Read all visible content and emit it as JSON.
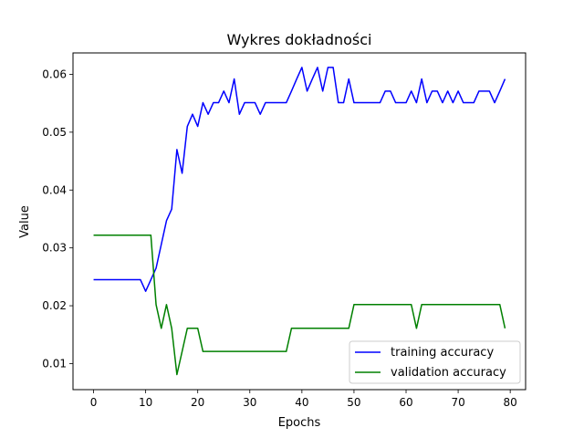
{
  "chart_data": {
    "type": "line",
    "title": "Wykres dokładności",
    "xlabel": "Epochs",
    "ylabel": "Value",
    "xlim": [
      -3.95,
      82.95
    ],
    "ylim": [
      0.0055,
      0.0637
    ],
    "xticks": [
      0,
      10,
      20,
      30,
      40,
      50,
      60,
      70,
      80
    ],
    "xtick_labels": [
      "0",
      "10",
      "20",
      "30",
      "40",
      "50",
      "60",
      "70",
      "80"
    ],
    "yticks": [
      0.01,
      0.02,
      0.03,
      0.04,
      0.05,
      0.06
    ],
    "ytick_labels": [
      "0.01",
      "0.02",
      "0.03",
      "0.04",
      "0.05",
      "0.06"
    ],
    "grid": false,
    "legend_position": "lower-right",
    "x": [
      0,
      1,
      2,
      3,
      4,
      5,
      6,
      7,
      8,
      9,
      10,
      11,
      12,
      13,
      14,
      15,
      16,
      17,
      18,
      19,
      20,
      21,
      22,
      23,
      24,
      25,
      26,
      27,
      28,
      29,
      30,
      31,
      32,
      33,
      34,
      35,
      36,
      37,
      38,
      39,
      40,
      41,
      42,
      43,
      44,
      45,
      46,
      47,
      48,
      49,
      50,
      51,
      52,
      53,
      54,
      55,
      56,
      57,
      58,
      59,
      60,
      61,
      62,
      63,
      64,
      65,
      66,
      67,
      68,
      69,
      70,
      71,
      72,
      73,
      74,
      75,
      76,
      77,
      78,
      79
    ],
    "series": [
      {
        "name": "training accuracy",
        "color": "#0000ff",
        "values": [
          0.0245,
          0.0245,
          0.0245,
          0.0245,
          0.0245,
          0.0245,
          0.0245,
          0.0245,
          0.0245,
          0.0245,
          0.0225,
          0.0245,
          0.0265,
          0.0306,
          0.0347,
          0.0367,
          0.047,
          0.0429,
          0.051,
          0.0531,
          0.051,
          0.0551,
          0.0531,
          0.0551,
          0.0551,
          0.0571,
          0.0551,
          0.0592,
          0.0531,
          0.0551,
          0.0551,
          0.0551,
          0.0531,
          0.0551,
          0.0551,
          0.0551,
          0.0551,
          0.0551,
          0.0571,
          0.0592,
          0.0612,
          0.0571,
          0.0592,
          0.0612,
          0.0571,
          0.0612,
          0.0612,
          0.0551,
          0.0551,
          0.0592,
          0.0551,
          0.0551,
          0.0551,
          0.0551,
          0.0551,
          0.0551,
          0.0571,
          0.0571,
          0.0551,
          0.0551,
          0.0551,
          0.0571,
          0.0551,
          0.0592,
          0.0551,
          0.0571,
          0.0571,
          0.0551,
          0.0571,
          0.0551,
          0.0571,
          0.0551,
          0.0551,
          0.0551,
          0.0571,
          0.0571,
          0.0571,
          0.0551,
          0.0571,
          0.0592
        ]
      },
      {
        "name": "validation accuracy",
        "color": "#008000",
        "values": [
          0.0322,
          0.0322,
          0.0322,
          0.0322,
          0.0322,
          0.0322,
          0.0322,
          0.0322,
          0.0322,
          0.0322,
          0.0322,
          0.0322,
          0.0202,
          0.0161,
          0.0202,
          0.0161,
          0.0081,
          0.0121,
          0.0161,
          0.0161,
          0.0161,
          0.0121,
          0.0121,
          0.0121,
          0.0121,
          0.0121,
          0.0121,
          0.0121,
          0.0121,
          0.0121,
          0.0121,
          0.0121,
          0.0121,
          0.0121,
          0.0121,
          0.0121,
          0.0121,
          0.0121,
          0.0161,
          0.0161,
          0.0161,
          0.0161,
          0.0161,
          0.0161,
          0.0161,
          0.0161,
          0.0161,
          0.0161,
          0.0161,
          0.0161,
          0.0202,
          0.0202,
          0.0202,
          0.0202,
          0.0202,
          0.0202,
          0.0202,
          0.0202,
          0.0202,
          0.0202,
          0.0202,
          0.0202,
          0.0161,
          0.0202,
          0.0202,
          0.0202,
          0.0202,
          0.0202,
          0.0202,
          0.0202,
          0.0202,
          0.0202,
          0.0202,
          0.0202,
          0.0202,
          0.0202,
          0.0202,
          0.0202,
          0.0202,
          0.0161
        ]
      }
    ]
  }
}
